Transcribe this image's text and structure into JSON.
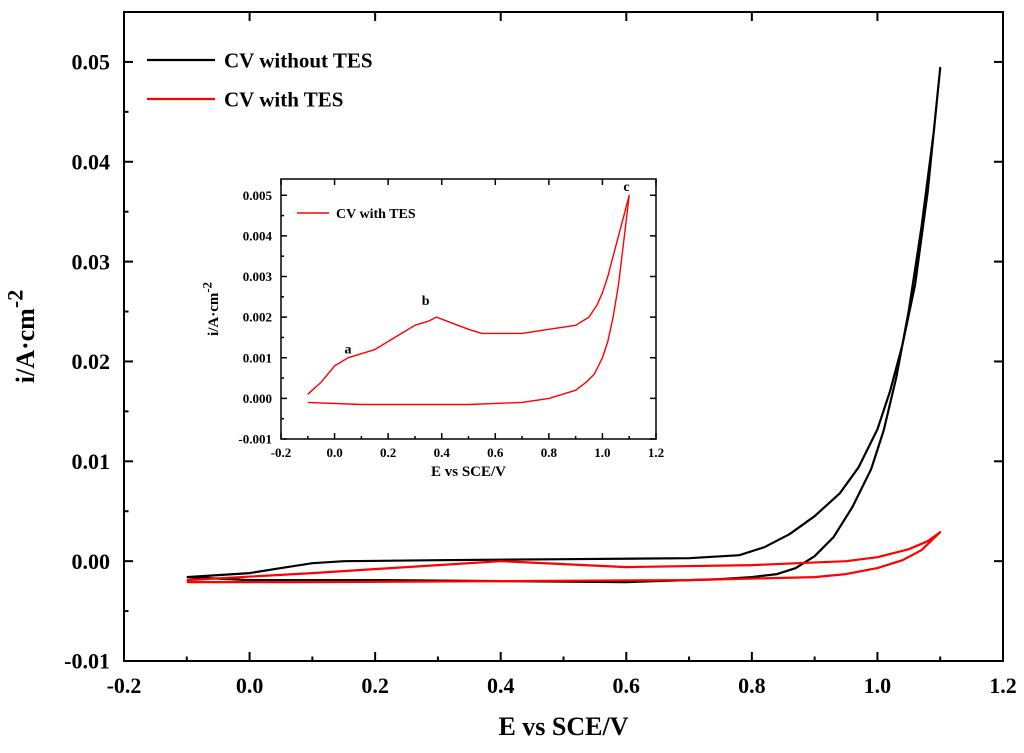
{
  "chart_data": [
    {
      "type": "line",
      "xlabel": "E vs SCE/V",
      "ylabel": "i/A·cm",
      "ylabel_superscript": "-2",
      "xlim": [
        -0.2,
        1.2
      ],
      "ylim": [
        -0.01,
        0.055
      ],
      "x_ticks": [
        -0.2,
        0.0,
        0.2,
        0.4,
        0.6,
        0.8,
        1.0,
        1.2
      ],
      "y_ticks": [
        -0.01,
        0.0,
        0.01,
        0.02,
        0.03,
        0.04,
        0.05
      ],
      "x_tick_labels": [
        "-0.2",
        "0.0",
        "0.2",
        "0.4",
        "0.6",
        "0.8",
        "1.0",
        "1.2"
      ],
      "y_tick_labels": [
        "-0.01",
        "0.00",
        "0.01",
        "0.02",
        "0.03",
        "0.04",
        "0.05"
      ],
      "grid": false,
      "legend_position": "top-left",
      "series": [
        {
          "name": "CV without TES",
          "color": "#000000",
          "x": [
            -0.1,
            0.0,
            0.05,
            0.1,
            0.15,
            0.3,
            0.5,
            0.7,
            0.78,
            0.82,
            0.86,
            0.9,
            0.94,
            0.97,
            1.0,
            1.02,
            1.04,
            1.06,
            1.08,
            1.1,
            1.09,
            1.07,
            1.05,
            1.03,
            1.01,
            0.99,
            0.96,
            0.93,
            0.9,
            0.87,
            0.84,
            0.8,
            0.75,
            0.6,
            0.4,
            0.2,
            0.0,
            -0.1
          ],
          "y": [
            -0.0016,
            -0.0012,
            -0.0007,
            -0.0002,
            0.0,
            0.0001,
            0.0002,
            0.0003,
            0.0006,
            0.0014,
            0.0027,
            0.0045,
            0.0068,
            0.0094,
            0.0132,
            0.017,
            0.0217,
            0.0277,
            0.037,
            0.0494,
            0.0431,
            0.0334,
            0.0251,
            0.0184,
            0.0131,
            0.0092,
            0.0054,
            0.0024,
            0.0005,
            -0.0007,
            -0.0013,
            -0.0016,
            -0.0018,
            -0.0021,
            -0.002,
            -0.0019,
            -0.0019,
            -0.0016
          ]
        },
        {
          "name": "CV with TES",
          "color": "#ff0000",
          "x": [
            -0.1,
            0.1,
            0.3,
            0.4,
            0.5,
            0.6,
            0.8,
            0.95,
            1.0,
            1.05,
            1.08,
            1.1,
            1.07,
            1.04,
            1.0,
            0.95,
            0.9,
            0.7,
            0.4,
            0.1,
            -0.1
          ],
          "y": [
            -0.0019,
            -0.0012,
            -0.0004,
            0.0,
            -0.0003,
            -0.0006,
            -0.0004,
            0.0,
            0.0004,
            0.0012,
            0.002,
            0.0029,
            0.0011,
            0.0001,
            -0.0007,
            -0.0013,
            -0.0016,
            -0.0019,
            -0.002,
            -0.0021,
            -0.0021
          ]
        }
      ]
    },
    {
      "type": "line",
      "inset": true,
      "xlabel": "E vs SCE/V",
      "ylabel": "i/A·cm",
      "ylabel_superscript": "-2",
      "xlim": [
        -0.2,
        1.2
      ],
      "ylim": [
        -0.001,
        0.0054
      ],
      "x_ticks": [
        -0.2,
        0.0,
        0.2,
        0.4,
        0.6,
        0.8,
        1.0,
        1.2
      ],
      "y_ticks": [
        -0.001,
        0.0,
        0.001,
        0.002,
        0.003,
        0.004,
        0.005
      ],
      "x_tick_labels": [
        "-0.2",
        "0.0",
        "0.2",
        "0.4",
        "0.6",
        "0.8",
        "1.0",
        "1.2"
      ],
      "y_tick_labels": [
        "-0.001",
        "0.000",
        "0.001",
        "0.002",
        "0.003",
        "0.004",
        "0.005"
      ],
      "grid": false,
      "legend_position": "top-left",
      "annotations": [
        {
          "text": "a",
          "x": 0.05,
          "y": 0.0011
        },
        {
          "text": "b",
          "x": 0.34,
          "y": 0.0023
        },
        {
          "text": "c",
          "x": 1.09,
          "y": 0.0051
        }
      ],
      "series": [
        {
          "name": "CV with TES",
          "color": "#ff0000",
          "x": [
            -0.1,
            -0.05,
            0.0,
            0.05,
            0.1,
            0.15,
            0.2,
            0.25,
            0.3,
            0.35,
            0.38,
            0.42,
            0.46,
            0.5,
            0.55,
            0.6,
            0.7,
            0.8,
            0.9,
            0.95,
            0.98,
            1.0,
            1.02,
            1.04,
            1.06,
            1.08,
            1.1,
            1.08,
            1.06,
            1.04,
            1.02,
            1.0,
            0.97,
            0.94,
            0.9,
            0.85,
            0.8,
            0.7,
            0.5,
            0.3,
            0.1,
            -0.1
          ],
          "y": [
            0.0001,
            0.0004,
            0.0008,
            0.001,
            0.0011,
            0.0012,
            0.0014,
            0.0016,
            0.0018,
            0.0019,
            0.002,
            0.0019,
            0.0018,
            0.0017,
            0.0016,
            0.0016,
            0.0016,
            0.0017,
            0.0018,
            0.002,
            0.0023,
            0.0026,
            0.003,
            0.0035,
            0.004,
            0.0045,
            0.005,
            0.0039,
            0.0028,
            0.002,
            0.0014,
            0.001,
            0.0006,
            0.0004,
            0.0002,
            0.0001,
            0.0,
            -0.0001,
            -0.00015,
            -0.00015,
            -0.00015,
            -0.0001
          ]
        }
      ]
    }
  ]
}
